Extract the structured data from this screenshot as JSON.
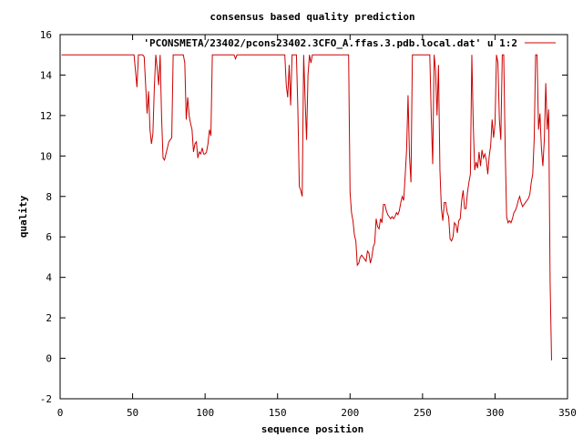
{
  "chart_data": {
    "type": "line",
    "title": "consensus based quality prediction",
    "xlabel": "sequence position",
    "ylabel": "quality",
    "xlim": [
      0,
      350
    ],
    "ylim": [
      -2,
      16
    ],
    "x_ticks": [
      0,
      50,
      100,
      150,
      200,
      250,
      300,
      350
    ],
    "y_ticks": [
      -2,
      0,
      2,
      4,
      6,
      8,
      10,
      12,
      14,
      16
    ],
    "legend_position": "top-right",
    "series": [
      {
        "name": "'PCONSMETA/23402/pcons23402.3CFO_A.ffas.3.pdb.local.dat' u 1:2",
        "color": "#cc0000",
        "points": [
          [
            1,
            15
          ],
          [
            20,
            15
          ],
          [
            40,
            15
          ],
          [
            51,
            15
          ],
          [
            52,
            14.2
          ],
          [
            53,
            13.4
          ],
          [
            54,
            15
          ],
          [
            55,
            15
          ],
          [
            57,
            15
          ],
          [
            58,
            14.9
          ],
          [
            59,
            13.5
          ],
          [
            60,
            12.1
          ],
          [
            61,
            13.2
          ],
          [
            62,
            11.3
          ],
          [
            63,
            10.6
          ],
          [
            64,
            11.1
          ],
          [
            65,
            13.4
          ],
          [
            66,
            15
          ],
          [
            67,
            14.3
          ],
          [
            68,
            13.5
          ],
          [
            69,
            15
          ],
          [
            70,
            11.9
          ],
          [
            71,
            9.9
          ],
          [
            72,
            9.8
          ],
          [
            73,
            10.1
          ],
          [
            74,
            10.4
          ],
          [
            75,
            10.7
          ],
          [
            76,
            10.8
          ],
          [
            77,
            10.9
          ],
          [
            78,
            15
          ],
          [
            80,
            15
          ],
          [
            85,
            15
          ],
          [
            86,
            14.6
          ],
          [
            87,
            11.8
          ],
          [
            88,
            12.9
          ],
          [
            89,
            12
          ],
          [
            90,
            11.6
          ],
          [
            91,
            11.3
          ],
          [
            92,
            10.2
          ],
          [
            93,
            10.6
          ],
          [
            94,
            10.7
          ],
          [
            95,
            9.9
          ],
          [
            96,
            10.2
          ],
          [
            97,
            10.1
          ],
          [
            98,
            10.4
          ],
          [
            99,
            10.1
          ],
          [
            100,
            10.1
          ],
          [
            101,
            10.2
          ],
          [
            102,
            10.6
          ],
          [
            103,
            11.3
          ],
          [
            104,
            11
          ],
          [
            105,
            15
          ],
          [
            110,
            15
          ],
          [
            120,
            15
          ],
          [
            121,
            14.8
          ],
          [
            122,
            15
          ],
          [
            130,
            15
          ],
          [
            150,
            15
          ],
          [
            155,
            15
          ],
          [
            156,
            13.5
          ],
          [
            157,
            12.9
          ],
          [
            158,
            14.5
          ],
          [
            159,
            12.5
          ],
          [
            160,
            15
          ],
          [
            163,
            15
          ],
          [
            164,
            12.3
          ],
          [
            165,
            8.5
          ],
          [
            166,
            8.3
          ],
          [
            167,
            8
          ],
          [
            168,
            15
          ],
          [
            169,
            12.8
          ],
          [
            170,
            10.8
          ],
          [
            171,
            14
          ],
          [
            172,
            15
          ],
          [
            173,
            14.6
          ],
          [
            174,
            15
          ],
          [
            180,
            15
          ],
          [
            199,
            15
          ],
          [
            200,
            8.2
          ],
          [
            201,
            7.2
          ],
          [
            202,
            6.8
          ],
          [
            203,
            6.1
          ],
          [
            204,
            5.8
          ],
          [
            205,
            4.6
          ],
          [
            206,
            4.7
          ],
          [
            207,
            5
          ],
          [
            208,
            5.1
          ],
          [
            209,
            5
          ],
          [
            210,
            4.9
          ],
          [
            211,
            4.8
          ],
          [
            212,
            5.3
          ],
          [
            213,
            5.2
          ],
          [
            214,
            4.7
          ],
          [
            215,
            5
          ],
          [
            216,
            5.5
          ],
          [
            217,
            5.7
          ],
          [
            218,
            6.9
          ],
          [
            219,
            6.5
          ],
          [
            220,
            6.4
          ],
          [
            221,
            6.9
          ],
          [
            222,
            6.7
          ],
          [
            223,
            7.6
          ],
          [
            224,
            7.6
          ],
          [
            225,
            7.3
          ],
          [
            226,
            7.1
          ],
          [
            227,
            7
          ],
          [
            228,
            6.9
          ],
          [
            229,
            7
          ],
          [
            230,
            6.9
          ],
          [
            231,
            7
          ],
          [
            232,
            7.2
          ],
          [
            233,
            7.1
          ],
          [
            234,
            7.3
          ],
          [
            235,
            7.7
          ],
          [
            236,
            8
          ],
          [
            237,
            7.8
          ],
          [
            238,
            9
          ],
          [
            239,
            10.3
          ],
          [
            240,
            13
          ],
          [
            241,
            10
          ],
          [
            242,
            8.7
          ],
          [
            243,
            15
          ],
          [
            250,
            15
          ],
          [
            255,
            15
          ],
          [
            256,
            12
          ],
          [
            257,
            9.6
          ],
          [
            258,
            15
          ],
          [
            259,
            14.2
          ],
          [
            260,
            12
          ],
          [
            261,
            14.5
          ],
          [
            262,
            9.3
          ],
          [
            263,
            7.4
          ],
          [
            264,
            6.8
          ],
          [
            265,
            7.7
          ],
          [
            266,
            7.7
          ],
          [
            267,
            7.2
          ],
          [
            268,
            7
          ],
          [
            269,
            5.9
          ],
          [
            270,
            5.8
          ],
          [
            271,
            6
          ],
          [
            272,
            6.7
          ],
          [
            273,
            6.6
          ],
          [
            274,
            6.2
          ],
          [
            275,
            6.8
          ],
          [
            276,
            6.9
          ],
          [
            277,
            7.8
          ],
          [
            278,
            8.3
          ],
          [
            279,
            7.4
          ],
          [
            280,
            7.4
          ],
          [
            281,
            8.2
          ],
          [
            282,
            8.7
          ],
          [
            283,
            9.1
          ],
          [
            284,
            15
          ],
          [
            285,
            11.5
          ],
          [
            286,
            9.3
          ],
          [
            287,
            9.7
          ],
          [
            288,
            9.4
          ],
          [
            289,
            10.2
          ],
          [
            290,
            9.5
          ],
          [
            291,
            10.3
          ],
          [
            292,
            9.9
          ],
          [
            293,
            10.1
          ],
          [
            294,
            9.8
          ],
          [
            295,
            9.1
          ],
          [
            296,
            10
          ],
          [
            297,
            10.5
          ],
          [
            298,
            11.8
          ],
          [
            299,
            10.9
          ],
          [
            300,
            11.6
          ],
          [
            301,
            15
          ],
          [
            302,
            14.6
          ],
          [
            303,
            11.8
          ],
          [
            304,
            10.8
          ],
          [
            305,
            15
          ],
          [
            306,
            15
          ],
          [
            307,
            10.4
          ],
          [
            308,
            7
          ],
          [
            309,
            6.7
          ],
          [
            310,
            6.8
          ],
          [
            311,
            6.7
          ],
          [
            312,
            6.9
          ],
          [
            313,
            7.2
          ],
          [
            314,
            7.3
          ],
          [
            315,
            7.5
          ],
          [
            316,
            7.8
          ],
          [
            317,
            8
          ],
          [
            318,
            7.7
          ],
          [
            319,
            7.5
          ],
          [
            320,
            7.6
          ],
          [
            321,
            7.7
          ],
          [
            322,
            7.8
          ],
          [
            323,
            7.9
          ],
          [
            324,
            8.1
          ],
          [
            325,
            8.7
          ],
          [
            326,
            9.1
          ],
          [
            327,
            10.8
          ],
          [
            328,
            15
          ],
          [
            329,
            15
          ],
          [
            330,
            11.3
          ],
          [
            331,
            12.1
          ],
          [
            332,
            10.4
          ],
          [
            333,
            9.5
          ],
          [
            334,
            10.8
          ],
          [
            335,
            13.6
          ],
          [
            336,
            11.3
          ],
          [
            337,
            12.3
          ],
          [
            338,
            3.8
          ],
          [
            339,
            -0.1
          ]
        ]
      }
    ]
  }
}
